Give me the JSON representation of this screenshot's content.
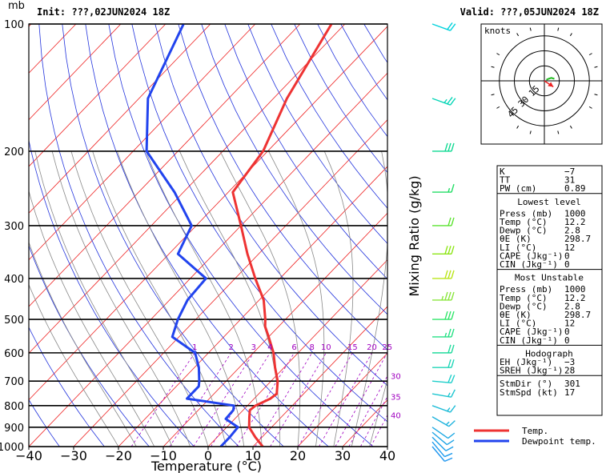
{
  "header": {
    "unit_label": "mb",
    "init": "Init: ???,02JUN2024 18Z",
    "valid": "Valid: ???,05JUN2024 18Z"
  },
  "chart_data": {
    "type": "line",
    "subtype": "skew-T log-P",
    "xlabel": "Temperature (°C)",
    "ylabel_right": "Mixing Ratio (g/kg)",
    "xlim": [
      -40,
      40
    ],
    "ylim": [
      1000,
      100
    ],
    "y_scale": "log",
    "x_ticks": [
      "−40",
      "−30",
      "−20",
      "−10",
      "0",
      "10",
      "20",
      "30",
      "40"
    ],
    "x_tick_values": [
      -40,
      -30,
      -20,
      -10,
      0,
      10,
      20,
      30,
      40
    ],
    "pressure_ticks": [
      100,
      200,
      300,
      400,
      500,
      600,
      700,
      800,
      900,
      1000
    ],
    "mixing_ratio_labels": [
      "1",
      "2",
      "3",
      "4",
      "6",
      "8",
      "10",
      "15",
      "20",
      "25",
      "30",
      "35",
      "40"
    ],
    "series": [
      {
        "name": "Temp.",
        "color": "#ee3333",
        "points": [
          [
            1000,
            12.2
          ],
          [
            950,
            8.5
          ],
          [
            900,
            5.0
          ],
          [
            850,
            2.8
          ],
          [
            820,
            1.5
          ],
          [
            800,
            1.8
          ],
          [
            770,
            3.6
          ],
          [
            750,
            4.0
          ],
          [
            700,
            1.5
          ],
          [
            650,
            -2.0
          ],
          [
            600,
            -5.5
          ],
          [
            550,
            -10.0
          ],
          [
            520,
            -13.0
          ],
          [
            500,
            -14.5
          ],
          [
            450,
            -19.0
          ],
          [
            400,
            -25.5
          ],
          [
            350,
            -32.5
          ],
          [
            300,
            -40.0
          ],
          [
            250,
            -49.0
          ],
          [
            200,
            -51.0
          ],
          [
            150,
            -57.0
          ],
          [
            100,
            -63.0
          ]
        ]
      },
      {
        "name": "Dewpoint temp.",
        "color": "#2244ee",
        "points": [
          [
            1000,
            2.8
          ],
          [
            950,
            2.8
          ],
          [
            900,
            2.5
          ],
          [
            860,
            -2.0
          ],
          [
            820,
            -2.2
          ],
          [
            800,
            -3.0
          ],
          [
            770,
            -15.0
          ],
          [
            720,
            -15.0
          ],
          [
            700,
            -16.0
          ],
          [
            650,
            -19.0
          ],
          [
            600,
            -23.0
          ],
          [
            550,
            -31.5
          ],
          [
            500,
            -34.0
          ],
          [
            450,
            -36.0
          ],
          [
            400,
            -36.5
          ],
          [
            350,
            -48.0
          ],
          [
            300,
            -51.0
          ],
          [
            250,
            -62.0
          ],
          [
            200,
            -77.0
          ],
          [
            150,
            -88.0
          ],
          [
            100,
            -96.0
          ]
        ]
      }
    ],
    "legend": {
      "placement": "bottom-right",
      "entries": [
        "Temp.",
        "Dewpoint temp."
      ]
    },
    "wind_barbs": [
      {
        "p": 100,
        "dir": 290,
        "spd": 20
      },
      {
        "p": 150,
        "dir": 290,
        "spd": 25
      },
      {
        "p": 200,
        "dir": 270,
        "spd": 30
      },
      {
        "p": 250,
        "dir": 270,
        "spd": 15
      },
      {
        "p": 300,
        "dir": 270,
        "spd": 20
      },
      {
        "p": 350,
        "dir": 270,
        "spd": 30
      },
      {
        "p": 400,
        "dir": 270,
        "spd": 30
      },
      {
        "p": 450,
        "dir": 270,
        "spd": 35
      },
      {
        "p": 500,
        "dir": 270,
        "spd": 30
      },
      {
        "p": 550,
        "dir": 270,
        "spd": 25
      },
      {
        "p": 600,
        "dir": 270,
        "spd": 20
      },
      {
        "p": 650,
        "dir": 270,
        "spd": 20
      },
      {
        "p": 700,
        "dir": 275,
        "spd": 20
      },
      {
        "p": 750,
        "dir": 280,
        "spd": 15
      },
      {
        "p": 800,
        "dir": 290,
        "spd": 15
      },
      {
        "p": 850,
        "dir": 300,
        "spd": 15
      },
      {
        "p": 900,
        "dir": 305,
        "spd": 10
      },
      {
        "p": 925,
        "dir": 310,
        "spd": 10
      },
      {
        "p": 950,
        "dir": 315,
        "spd": 10
      },
      {
        "p": 975,
        "dir": 320,
        "spd": 10
      },
      {
        "p": 1000,
        "dir": 320,
        "spd": 10
      }
    ],
    "hodograph": {
      "unit": "knots",
      "ring_labels": [
        "15",
        "30",
        "45"
      ],
      "ring_values": [
        15,
        30,
        45
      ],
      "points_uv": [
        [
          2,
          1
        ],
        [
          4,
          2
        ],
        [
          7,
          3
        ],
        [
          10,
          2
        ]
      ],
      "storm_motion_uv": [
        9,
        -6
      ]
    }
  },
  "indices": {
    "top": [
      {
        "k": "K",
        "v": "−7"
      },
      {
        "k": "TT",
        "v": "31"
      },
      {
        "k": "PW (cm)",
        "v": "0.89"
      }
    ],
    "lowest_title": "Lowest level",
    "lowest": [
      {
        "k": "Press (mb)",
        "v": "1000"
      },
      {
        "k": "Temp (°C)",
        "v": "12.2"
      },
      {
        "k": "Dewp (°C)",
        "v": "2.8"
      },
      {
        "k": "θE (K)",
        "v": "298.7"
      },
      {
        "k": "LI (°C)",
        "v": "12"
      },
      {
        "k": "CAPE (Jkg⁻¹)",
        "v": "0"
      },
      {
        "k": "CIN (Jkg⁻¹)",
        "v": "0"
      }
    ],
    "unstable_title": "Most Unstable",
    "unstable": [
      {
        "k": "Press (mb)",
        "v": "1000"
      },
      {
        "k": "Temp (°C)",
        "v": "12.2"
      },
      {
        "k": "Dewp (°C)",
        "v": "2.8"
      },
      {
        "k": "θE (K)",
        "v": "298.7"
      },
      {
        "k": "LI (°C)",
        "v": "12"
      },
      {
        "k": "CAPE (Jkg⁻¹)",
        "v": "0"
      },
      {
        "k": "CIN (Jkg⁻¹)",
        "v": "0"
      }
    ],
    "hodo_title": "Hodograph",
    "hodo": [
      {
        "k": "EH (Jkg⁻¹)",
        "v": "−3"
      },
      {
        "k": "SREH (Jkg⁻¹)",
        "v": "28"
      }
    ],
    "storm": [
      {
        "k": "StmDir (°)",
        "v": "301"
      },
      {
        "k": "StmSpd (kt)",
        "v": "17"
      }
    ]
  },
  "colors": {
    "isotherm": "#ee2222",
    "dry_adiabat": "#2233dd",
    "moist_adiabat": "#888888",
    "mixing_ratio": "#a000c0",
    "temp": "#ee3333",
    "dewpoint": "#2244ee"
  }
}
